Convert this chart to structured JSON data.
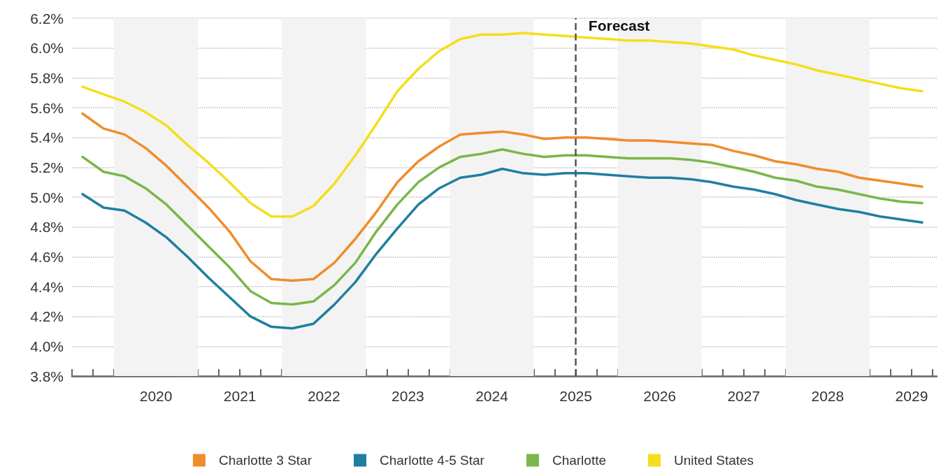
{
  "chart_data": {
    "type": "line",
    "x": [
      2019.625,
      2019.875,
      2020.125,
      2020.375,
      2020.625,
      2020.875,
      2021.125,
      2021.375,
      2021.625,
      2021.875,
      2022.125,
      2022.375,
      2022.625,
      2022.875,
      2023.125,
      2023.375,
      2023.625,
      2023.875,
      2024.125,
      2024.375,
      2024.625,
      2024.875,
      2025.125,
      2025.375,
      2025.625,
      2025.875,
      2026.125,
      2026.375,
      2026.625,
      2026.875,
      2027.125,
      2027.375,
      2027.625,
      2027.875,
      2028.125,
      2028.375,
      2028.625,
      2028.875,
      2029.125,
      2029.375,
      2029.625
    ],
    "series": [
      {
        "name": "Charlotte 3 Star",
        "color": "#f08c2a",
        "values": [
          5.56,
          5.46,
          5.42,
          5.33,
          5.21,
          5.07,
          4.93,
          4.77,
          4.57,
          4.45,
          4.44,
          4.45,
          4.56,
          4.72,
          4.9,
          5.1,
          5.24,
          5.34,
          5.42,
          5.43,
          5.44,
          5.42,
          5.39,
          5.4,
          5.4,
          5.39,
          5.38,
          5.38,
          5.37,
          5.36,
          5.35,
          5.31,
          5.28,
          5.24,
          5.22,
          5.19,
          5.17,
          5.13,
          5.11,
          5.09,
          5.07
        ]
      },
      {
        "name": "Charlotte 4-5 Star",
        "color": "#1f7fa0",
        "values": [
          5.02,
          4.93,
          4.91,
          4.83,
          4.73,
          4.6,
          4.46,
          4.33,
          4.2,
          4.13,
          4.12,
          4.15,
          4.28,
          4.43,
          4.62,
          4.79,
          4.95,
          5.06,
          5.13,
          5.15,
          5.19,
          5.16,
          5.15,
          5.16,
          5.16,
          5.15,
          5.14,
          5.13,
          5.13,
          5.12,
          5.1,
          5.07,
          5.05,
          5.02,
          4.98,
          4.95,
          4.92,
          4.9,
          4.87,
          4.85,
          4.83
        ]
      },
      {
        "name": "Charlotte",
        "color": "#7ab648",
        "values": [
          5.27,
          5.17,
          5.14,
          5.06,
          4.95,
          4.81,
          4.67,
          4.53,
          4.37,
          4.29,
          4.28,
          4.3,
          4.41,
          4.56,
          4.77,
          4.95,
          5.1,
          5.2,
          5.27,
          5.29,
          5.32,
          5.29,
          5.27,
          5.28,
          5.28,
          5.27,
          5.26,
          5.26,
          5.26,
          5.25,
          5.23,
          5.2,
          5.17,
          5.13,
          5.11,
          5.07,
          5.05,
          5.02,
          4.99,
          4.97,
          4.96
        ]
      },
      {
        "name": "United States",
        "color": "#f5de1b",
        "values": [
          5.74,
          5.69,
          5.64,
          5.57,
          5.48,
          5.35,
          5.23,
          5.1,
          4.96,
          4.87,
          4.87,
          4.94,
          5.09,
          5.28,
          5.49,
          5.71,
          5.86,
          5.98,
          6.06,
          6.09,
          6.09,
          6.1,
          6.09,
          6.08,
          6.07,
          6.06,
          6.05,
          6.05,
          6.04,
          6.03,
          6.01,
          5.99,
          5.95,
          5.92,
          5.89,
          5.85,
          5.82,
          5.79,
          5.76,
          5.73,
          5.71
        ]
      }
    ],
    "xlim": [
      2019.5,
      2029.8
    ],
    "xticks": [
      {
        "value": 2019.5,
        "label": null
      },
      {
        "value": 2019.75,
        "label": null
      },
      {
        "value": 2020,
        "label": null
      },
      {
        "value": 2020.25,
        "label": null
      },
      {
        "value": 2020.5,
        "label": "2020"
      },
      {
        "value": 2020.75,
        "label": null
      },
      {
        "value": 2021,
        "label": null
      },
      {
        "value": 2021.25,
        "label": null
      },
      {
        "value": 2021.5,
        "label": "2021"
      },
      {
        "value": 2021.75,
        "label": null
      },
      {
        "value": 2022,
        "label": null
      },
      {
        "value": 2022.25,
        "label": null
      },
      {
        "value": 2022.5,
        "label": "2022"
      },
      {
        "value": 2022.75,
        "label": null
      },
      {
        "value": 2023,
        "label": null
      },
      {
        "value": 2023.25,
        "label": null
      },
      {
        "value": 2023.5,
        "label": "2023"
      },
      {
        "value": 2023.75,
        "label": null
      },
      {
        "value": 2024,
        "label": null
      },
      {
        "value": 2024.25,
        "label": null
      },
      {
        "value": 2024.5,
        "label": "2024"
      },
      {
        "value": 2024.75,
        "label": null
      },
      {
        "value": 2025,
        "label": null
      },
      {
        "value": 2025.25,
        "label": null
      },
      {
        "value": 2025.5,
        "label": "2025"
      },
      {
        "value": 2025.75,
        "label": null
      },
      {
        "value": 2026,
        "label": null
      },
      {
        "value": 2026.25,
        "label": null
      },
      {
        "value": 2026.5,
        "label": "2026"
      },
      {
        "value": 2026.75,
        "label": null
      },
      {
        "value": 2027,
        "label": null
      },
      {
        "value": 2027.25,
        "label": null
      },
      {
        "value": 2027.5,
        "label": "2027"
      },
      {
        "value": 2027.75,
        "label": null
      },
      {
        "value": 2028,
        "label": null
      },
      {
        "value": 2028.25,
        "label": null
      },
      {
        "value": 2028.5,
        "label": "2028"
      },
      {
        "value": 2028.75,
        "label": null
      },
      {
        "value": 2029,
        "label": null
      },
      {
        "value": 2029.25,
        "label": null
      },
      {
        "value": 2029.5,
        "label": "2029"
      },
      {
        "value": 2029.75,
        "label": null
      }
    ],
    "ylim": [
      3.8,
      6.2
    ],
    "yticks": [
      {
        "value": 3.8,
        "label": "3.8%"
      },
      {
        "value": 4.0,
        "label": "4.0%"
      },
      {
        "value": 4.2,
        "label": "4.2%"
      },
      {
        "value": 4.4,
        "label": "4.4%"
      },
      {
        "value": 4.6,
        "label": "4.6%"
      },
      {
        "value": 4.8,
        "label": "4.8%"
      },
      {
        "value": 5.0,
        "label": "5.0%"
      },
      {
        "value": 5.2,
        "label": "5.2%"
      },
      {
        "value": 5.4,
        "label": "5.4%"
      },
      {
        "value": 5.6,
        "label": "5.6%"
      },
      {
        "value": 5.8,
        "label": "5.8%"
      },
      {
        "value": 6.0,
        "label": "6.0%"
      },
      {
        "value": 6.2,
        "label": "6.2%"
      }
    ],
    "bands": [
      {
        "axis": "x",
        "from": 2020,
        "to": 2021,
        "color": "#f3f3f3"
      },
      {
        "axis": "x",
        "from": 2022,
        "to": 2023,
        "color": "#f3f3f3"
      },
      {
        "axis": "x",
        "from": 2024,
        "to": 2025,
        "color": "#f3f3f3"
      },
      {
        "axis": "x",
        "from": 2026,
        "to": 2027,
        "color": "#f3f3f3"
      },
      {
        "axis": "x",
        "from": 2028,
        "to": 2029,
        "color": "#f3f3f3"
      }
    ],
    "ref_lines": [
      {
        "axis": "x",
        "value": 2025.5,
        "label": "Forecast",
        "color": "#555555",
        "line_style": "dashed"
      }
    ],
    "grid": "y",
    "legend": "bottom",
    "marker": "none",
    "line_style": "solid"
  }
}
